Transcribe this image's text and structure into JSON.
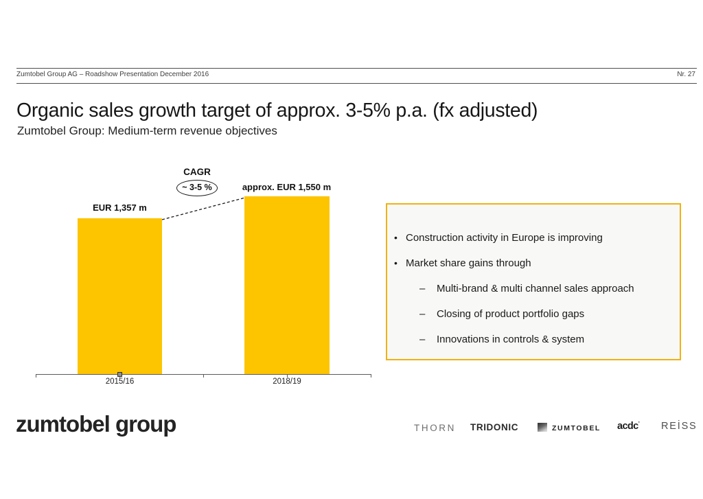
{
  "header": {
    "left_text": "Zumtobel Group AG – Roadshow Presentation December 2016",
    "page_label": "Nr. 27"
  },
  "title": "Organic sales growth target of approx. 3-5% p.a. (fx adjusted)",
  "subtitle": "Zumtobel Group: Medium-term revenue objectives",
  "chart_data": {
    "type": "bar",
    "categories": [
      "2015/16",
      "2018/19"
    ],
    "values": [
      1357,
      1550
    ],
    "value_labels": [
      "EUR 1,357 m",
      "approx. EUR 1,550 m"
    ],
    "annotation": {
      "title": "CAGR",
      "value": "~ 3-5 %"
    },
    "xlabel": "",
    "ylabel": "",
    "ylim": [
      0,
      1600
    ],
    "grid": false,
    "legend": "none",
    "bar_color": "#FDC400"
  },
  "bullets": {
    "marker_level1": "•",
    "marker_level2": "–",
    "items": [
      {
        "level": 1,
        "text": "Construction activity in Europe is improving"
      },
      {
        "level": 1,
        "text": "Market share gains through"
      },
      {
        "level": 2,
        "text": "Multi-brand & multi channel sales approach"
      },
      {
        "level": 2,
        "text": "Closing of product portfolio gaps"
      },
      {
        "level": 2,
        "text": "Innovations in controls & system"
      }
    ]
  },
  "footer": {
    "wordmark": "zumtobel group",
    "brands": [
      {
        "label": "THORN"
      },
      {
        "label": "TRIDONIC"
      },
      {
        "label": "ZUMTOBEL"
      },
      {
        "label": "acdc",
        "mark": "’"
      },
      {
        "label": "REİSS"
      }
    ]
  },
  "colors": {
    "accent_yellow": "#FDC400",
    "box_border": "#EFB212"
  }
}
